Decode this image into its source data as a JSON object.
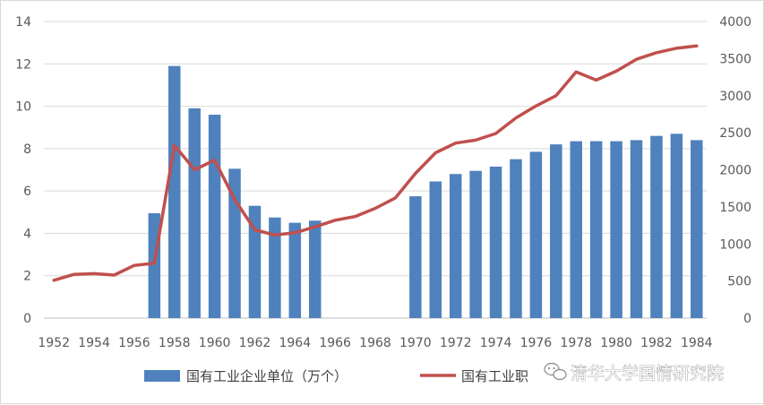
{
  "chart_data": {
    "type": "bar+line",
    "title": "",
    "x": [
      1952,
      1953,
      1954,
      1955,
      1956,
      1957,
      1958,
      1959,
      1960,
      1961,
      1962,
      1963,
      1964,
      1965,
      1966,
      1967,
      1968,
      1969,
      1970,
      1971,
      1972,
      1973,
      1974,
      1975,
      1976,
      1977,
      1978,
      1979,
      1980,
      1981,
      1982,
      1983,
      1984
    ],
    "x_tick_labels": [
      "1952",
      "1954",
      "1956",
      "1958",
      "1960",
      "1962",
      "1964",
      "1966",
      "1968",
      "1970",
      "1972",
      "1974",
      "1976",
      "1978",
      "1980",
      "1982",
      "1984"
    ],
    "y_left": {
      "min": 0,
      "max": 14,
      "ticks": [
        0,
        2,
        4,
        6,
        8,
        10,
        12,
        14
      ]
    },
    "y_right": {
      "min": 0,
      "max": 4000,
      "ticks": [
        0,
        500,
        1000,
        1500,
        2000,
        2500,
        3000,
        3500,
        4000
      ]
    },
    "grid": true,
    "legend_position": "bottom",
    "series": [
      {
        "name": "国有工业企业单位（万个）",
        "kind": "bar",
        "axis": "left",
        "color": "#4f81bd",
        "values": [
          null,
          null,
          null,
          null,
          null,
          4.95,
          11.9,
          9.9,
          9.6,
          7.05,
          5.3,
          4.75,
          4.5,
          4.6,
          null,
          null,
          null,
          null,
          5.75,
          6.45,
          6.8,
          6.95,
          7.15,
          7.5,
          7.85,
          8.2,
          8.35,
          8.35,
          8.35,
          8.4,
          8.6,
          8.7,
          8.4
        ]
      },
      {
        "name": "国有工业职",
        "kind": "line",
        "axis": "right",
        "color": "#c0504d",
        "values": [
          510,
          590,
          600,
          580,
          710,
          740,
          2330,
          2000,
          2130,
          1600,
          1190,
          1120,
          1150,
          1230,
          1320,
          1370,
          1480,
          1620,
          1950,
          2230,
          2360,
          2400,
          2490,
          2700,
          2860,
          3000,
          3320,
          3210,
          3330,
          3490,
          3580,
          3640,
          3670
        ]
      }
    ]
  },
  "watermark": {
    "icon": "wechat-icon",
    "text": "清华大学国情研究院"
  }
}
